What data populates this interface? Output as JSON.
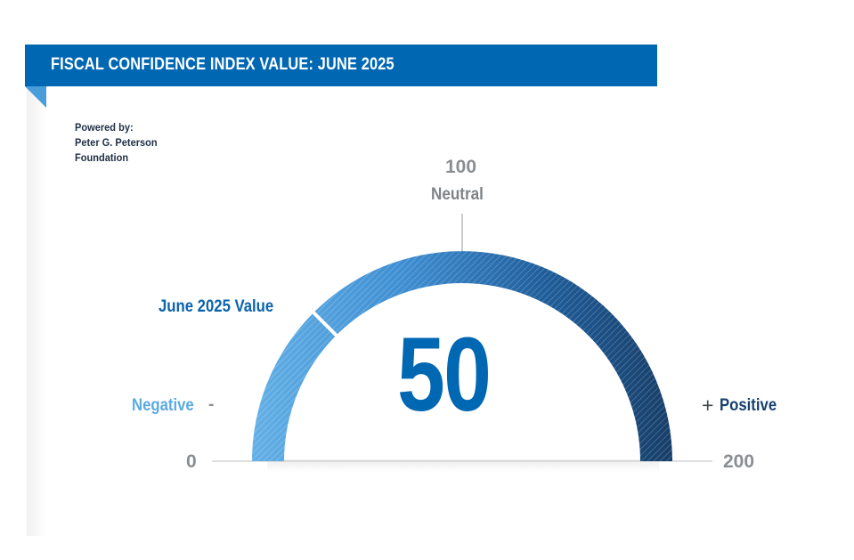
{
  "header": {
    "title": "FISCAL CONFIDENCE INDEX VALUE: JUNE 2025"
  },
  "attribution": {
    "line1": "Powered by:",
    "line2": "Peter G. Peterson",
    "line3": "Foundation"
  },
  "colors": {
    "brand_blue": "#0067b3",
    "negative": "#5aaae2",
    "positive": "#16406e",
    "neutral_gray": "#8a8e93"
  },
  "chart_data": {
    "type": "gauge",
    "title": "FISCAL CONFIDENCE INDEX VALUE: JUNE 2025",
    "min": 0,
    "max": 200,
    "value": 50,
    "value_text": "50",
    "ticks": [
      {
        "value": 0,
        "label": "0"
      },
      {
        "value": 100,
        "label": "100"
      },
      {
        "value": 200,
        "label": "200"
      }
    ],
    "neutral_value": 100,
    "neutral_label": "Neutral",
    "marker_label": "June 2025 Value",
    "negative_label": "Negative",
    "negative_sign": "-",
    "positive_label": "Positive",
    "positive_sign": "+"
  }
}
